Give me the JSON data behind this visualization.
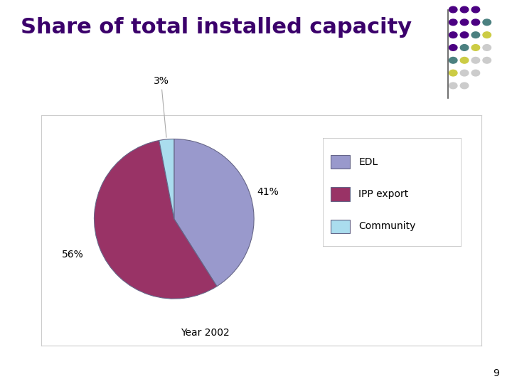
{
  "title": "Share of total installed capacity",
  "title_color": "#3B006B",
  "title_fontsize": 22,
  "title_fontweight": "bold",
  "slices": [
    41,
    56,
    3
  ],
  "labels": [
    "EDL",
    "IPP export",
    "Community"
  ],
  "colors": [
    "#9999CC",
    "#993366",
    "#AADDEE"
  ],
  "legend_labels": [
    "EDL",
    "IPP export",
    "Community"
  ],
  "legend_colors": [
    "#9999CC",
    "#993366",
    "#AADDEE"
  ],
  "pct_labels": [
    "41%",
    "56%",
    "3%"
  ],
  "xlabel": "Year 2002",
  "background_color": "#FFFFFF",
  "page_number": "9",
  "startangle": 90,
  "chart_box_facecolor": "#FFFFFF",
  "chart_box_edgecolor": "#CCCCCC",
  "dot_colors_rows": [
    [
      "#4B0082",
      "#4B0082",
      "#4B0082"
    ],
    [
      "#4B0082",
      "#4B0082",
      "#4B0082",
      "#4B8080"
    ],
    [
      "#4B0082",
      "#4B0082",
      "#4B8080",
      "#CCCC44"
    ],
    [
      "#4B0082",
      "#4B8080",
      "#CCCC44",
      "#CCCCCC"
    ],
    [
      "#4B8080",
      "#CCCC44",
      "#CCCCCC",
      "#CCCCCC"
    ],
    [
      "#CCCC44",
      "#CCCCCC",
      "#CCCCCC"
    ],
    [
      "#CCCCCC",
      "#CCCCCC"
    ]
  ]
}
